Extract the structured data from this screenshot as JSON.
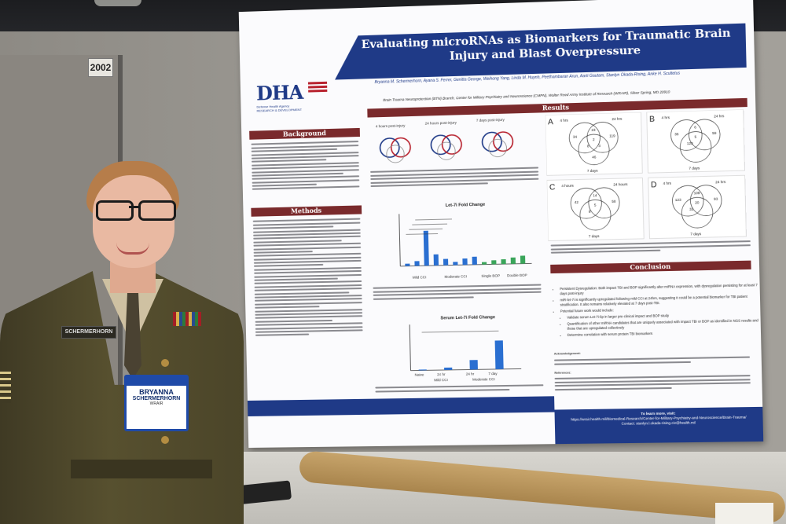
{
  "scene": {
    "booth_number": "2002"
  },
  "poster": {
    "logo_text": "DHA",
    "logo_subtitle": "Defense Health Agency",
    "logo_dept": "RESEARCH & DEVELOPMENT",
    "title": "Evaluating microRNAs as Biomarkers for Traumatic Brain Injury and Blast Overpressure",
    "authors": "Bryanna M. Schermerhorn, Ayana S. Ferrer, Genitta George, Weihong Yang, Linda M. Huynh, Peethambaran Arun, Aarti Gautam, Stanlyn Okada-Rising, Anke H. Scultetus",
    "affiliation": "Brain Trauma Neuroprotection (BTN) Branch, Center for Military Psychiatry and Neuroscience (CMPN), Walter Reed Army Institute of Research (WRAIR), Silver Spring, MD 20910",
    "sections": {
      "background": "Background",
      "methods": "Methods",
      "results": "Results",
      "conclusion": "Conclusion"
    },
    "venn_time_labels": [
      "4 hours post-injury",
      "24 hours post-injury",
      "7 days post-injury"
    ],
    "venn_panels": [
      {
        "letter": "A",
        "top_left": "4 hrs",
        "top_right": "24 hrs",
        "bottom": "7 days",
        "values": [
          "34",
          "23",
          "119",
          "2",
          "8",
          "3",
          "46"
        ]
      },
      {
        "letter": "B",
        "top_left": "4 hrs",
        "top_right": "24 hrs",
        "bottom": "7 days",
        "values": [
          "36",
          "6",
          "59",
          "5",
          "123"
        ]
      },
      {
        "letter": "C",
        "top_left": "4 hours",
        "top_right": "24 hours",
        "bottom": "7 days",
        "values": [
          "42",
          "14",
          "58",
          "5",
          "8"
        ]
      },
      {
        "letter": "D",
        "top_left": "4 hrs",
        "top_right": "24 hrs",
        "bottom": "7 days",
        "values": [
          "123",
          "109",
          "93",
          "20",
          "32"
        ]
      }
    ],
    "chart1_title": "Let-7i Fold Change",
    "chart2_title": "Serum Let-7i Fold Change",
    "chart1_groups": [
      "Mild CCI",
      "Moderate CCI",
      "Single BOP",
      "Double BOP"
    ],
    "chart2_groups": [
      "Naive",
      "24 hr",
      "24 hr",
      "7 day"
    ],
    "chart2_group_labels": [
      "Mild CCI",
      "Moderate CCI"
    ],
    "conclusion_items": [
      "Persistent Dysregulation: Both impact TBI and BOP significantly alter miRNA expression, with dysregulation persisting for at least 7 days post-injury",
      "miR-let-7i is significantly upregulated following mild CCI at 24hrs, suggesting it could be a potential biomarker for TBI patient stratification. It also remains relatively elevated at 7 days post-TBI.",
      "Potential future work would include:",
      "Validate serum Let-7i-5p in larger pre-clinical impact and BOP study",
      "Quantification of other miRNA candidates that are uniquely associated with impact TBI or BOP as identified in NGS results and those that are upregulated collectively",
      "Determine correlation with serum protein TBI biomarkers"
    ],
    "acknowledgement_title": "Acknowledgement:",
    "references_title": "References:",
    "learn_more": "To learn more, visit:",
    "learn_more_url": "https://wrair.health.mil/Biomedical-Research/Center-for-Military-Psychiatry-and-Neuroscience/Brain-Trauma/",
    "contact": "Contact: stanlyn.l.okada-rising.civ@health.mil"
  },
  "person": {
    "name_tape": "SCHERMERHORN",
    "badge_first": "BRYANNA",
    "badge_last": "SCHERMERHORN",
    "badge_org": "WRAIR"
  },
  "colors": {
    "navy": "#1f3a87",
    "maroon": "#7a2a2c",
    "uniform": "#4f4a2b"
  }
}
